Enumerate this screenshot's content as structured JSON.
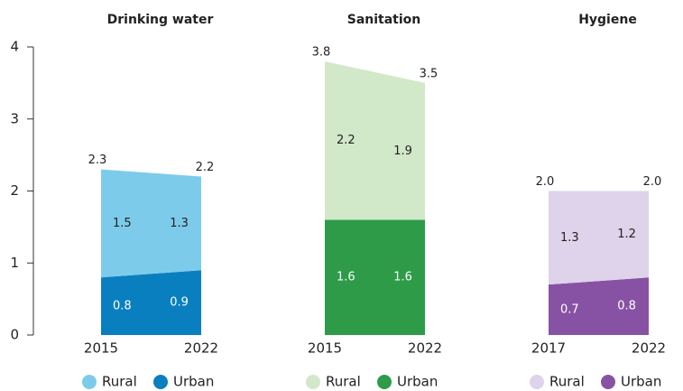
{
  "chart_data": [
    {
      "type": "stacked_area",
      "title": "Drinking water",
      "x": [
        "2015",
        "2022"
      ],
      "series": [
        {
          "name": "Rural",
          "color": "#7dcbea",
          "values": [
            1.5,
            1.3
          ]
        },
        {
          "name": "Urban",
          "color": "#0a7fc0",
          "values": [
            0.8,
            0.9
          ]
        }
      ],
      "totals": [
        2.3,
        2.2
      ],
      "ylim": [
        0,
        4
      ],
      "yticks": [
        0,
        1,
        2,
        3,
        4
      ]
    },
    {
      "type": "stacked_area",
      "title": "Sanitation",
      "x": [
        "2015",
        "2022"
      ],
      "series": [
        {
          "name": "Rural",
          "color": "#d1e8c9",
          "values": [
            2.2,
            1.9
          ]
        },
        {
          "name": "Urban",
          "color": "#2e9b48",
          "values": [
            1.6,
            1.6
          ]
        }
      ],
      "totals": [
        3.8,
        3.5
      ],
      "ylim": [
        0,
        4
      ]
    },
    {
      "type": "stacked_area",
      "title": "Hygiene",
      "x": [
        "2017",
        "2022"
      ],
      "series": [
        {
          "name": "Rural",
          "color": "#ded3ea",
          "values": [
            1.3,
            1.2
          ]
        },
        {
          "name": "Urban",
          "color": "#8852a4",
          "values": [
            0.7,
            0.8
          ]
        }
      ],
      "totals": [
        2,
        2
      ],
      "total_labels": [
        "2.0",
        "2.0"
      ],
      "ylim": [
        0,
        4
      ]
    }
  ]
}
